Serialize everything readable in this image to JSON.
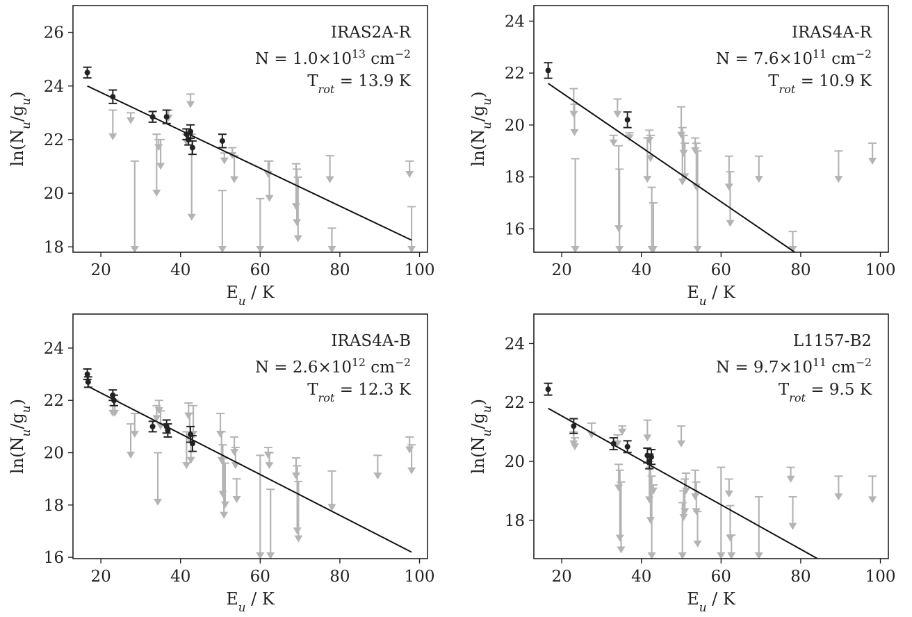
{
  "chart_data": [
    {
      "type": "scatter",
      "title": "",
      "xlabel": "E_u / K",
      "ylabel": "ln(N_u/g_u)",
      "xlim": [
        13,
        102
      ],
      "ylim": [
        17.8,
        27.0
      ],
      "xticks": [
        20,
        40,
        60,
        80,
        100
      ],
      "yticks": [
        18,
        20,
        22,
        24,
        26
      ],
      "grid": false,
      "annotation": {
        "source": "IRAS2A-R",
        "N_pre": "N = 1.0×10",
        "N_exp": "13",
        "N_unit": " cm",
        "N_unit_exp": "−2",
        "T_pre": "T",
        "T_sub": "rot",
        "T_val": " = 13.9 K"
      },
      "fit": {
        "x": [
          16.6,
          98.0
        ],
        "y": [
          24.0,
          18.25
        ]
      },
      "detections": [
        {
          "x": 16.6,
          "y": 24.5,
          "err": 0.2
        },
        {
          "x": 23.0,
          "y": 23.6,
          "err": 0.25
        },
        {
          "x": 33.0,
          "y": 22.85,
          "err": 0.2
        },
        {
          "x": 36.5,
          "y": 22.85,
          "err": 0.25
        },
        {
          "x": 41.5,
          "y": 22.2,
          "err": 0.2
        },
        {
          "x": 42.0,
          "y": 22.0,
          "err": 0.2
        },
        {
          "x": 42.5,
          "y": 22.3,
          "err": 0.25
        },
        {
          "x": 43.0,
          "y": 21.7,
          "err": 0.25
        },
        {
          "x": 50.5,
          "y": 21.95,
          "err": 0.25
        }
      ],
      "upper_limits": [
        {
          "x": 23.0,
          "top": 23.1,
          "bottom": 22.0
        },
        {
          "x": 27.5,
          "top": 23.0,
          "bottom": 22.6
        },
        {
          "x": 28.5,
          "top": 21.2,
          "bottom": 17.8
        },
        {
          "x": 34.0,
          "top": 22.2,
          "bottom": 19.9
        },
        {
          "x": 34.5,
          "top": 22.0,
          "bottom": 21.6
        },
        {
          "x": 35.0,
          "top": 22.0,
          "bottom": 20.9
        },
        {
          "x": 37.0,
          "top": 23.1,
          "bottom": 22.7
        },
        {
          "x": 41.5,
          "top": 22.2,
          "bottom": 21.8
        },
        {
          "x": 42.5,
          "top": 23.7,
          "bottom": 23.2
        },
        {
          "x": 42.8,
          "top": 22.2,
          "bottom": 19.0
        },
        {
          "x": 50.5,
          "top": 20.1,
          "bottom": 17.8
        },
        {
          "x": 51.0,
          "top": 21.5,
          "bottom": 21.1
        },
        {
          "x": 53.0,
          "top": 21.7,
          "bottom": 21.3
        },
        {
          "x": 53.5,
          "top": 21.4,
          "bottom": 20.4
        },
        {
          "x": 60.0,
          "top": 19.8,
          "bottom": 17.8
        },
        {
          "x": 62.0,
          "top": 21.2,
          "bottom": 20.6
        },
        {
          "x": 62.3,
          "top": 21.2,
          "bottom": 19.7
        },
        {
          "x": 69.0,
          "top": 21.1,
          "bottom": 19.4
        },
        {
          "x": 69.2,
          "top": 20.9,
          "bottom": 18.8
        },
        {
          "x": 69.5,
          "top": 20.6,
          "bottom": 18.2
        },
        {
          "x": 77.5,
          "top": 21.4,
          "bottom": 20.4
        },
        {
          "x": 78.0,
          "top": 18.7,
          "bottom": 17.8
        },
        {
          "x": 97.5,
          "top": 21.2,
          "bottom": 20.6
        },
        {
          "x": 98.0,
          "top": 19.5,
          "bottom": 17.8
        }
      ]
    },
    {
      "type": "scatter",
      "title": "",
      "xlabel": "E_u / K",
      "ylabel": "ln(N_u/g_u)",
      "xlim": [
        13,
        102
      ],
      "ylim": [
        15.1,
        24.6
      ],
      "xticks": [
        20,
        40,
        60,
        80,
        100
      ],
      "yticks": [
        16,
        18,
        20,
        22,
        24
      ],
      "grid": false,
      "annotation": {
        "source": "IRAS4A-R",
        "N_pre": "N = 7.6×10",
        "N_exp": "11",
        "N_unit": " cm",
        "N_unit_exp": "−2",
        "T_pre": "T",
        "T_sub": "rot",
        "T_val": " = 10.9 K"
      },
      "fit": {
        "x": [
          16.6,
          78.5
        ],
        "y": [
          21.6,
          15.1
        ]
      },
      "detections": [
        {
          "x": 16.6,
          "y": 22.1,
          "err": 0.3
        },
        {
          "x": 36.5,
          "y": 20.2,
          "err": 0.3
        }
      ],
      "upper_limits": [
        {
          "x": 23.0,
          "top": 21.4,
          "bottom": 20.3
        },
        {
          "x": 23.2,
          "top": 20.8,
          "bottom": 19.6
        },
        {
          "x": 23.4,
          "top": 18.7,
          "bottom": 15.1
        },
        {
          "x": 33.0,
          "top": 19.6,
          "bottom": 19.2
        },
        {
          "x": 34.0,
          "top": 21.0,
          "bottom": 20.3
        },
        {
          "x": 34.3,
          "top": 19.2,
          "bottom": 15.9
        },
        {
          "x": 34.5,
          "top": 18.3,
          "bottom": 15.1
        },
        {
          "x": 37.0,
          "top": 19.7,
          "bottom": 19.4
        },
        {
          "x": 41.5,
          "top": 19.5,
          "bottom": 17.8
        },
        {
          "x": 42.0,
          "top": 19.8,
          "bottom": 19.3
        },
        {
          "x": 42.3,
          "top": 19.6,
          "bottom": 18.6
        },
        {
          "x": 42.6,
          "top": 17.6,
          "bottom": 15.1
        },
        {
          "x": 43.0,
          "top": 17.0,
          "bottom": 15.1
        },
        {
          "x": 50.0,
          "top": 20.7,
          "bottom": 19.5
        },
        {
          "x": 50.3,
          "top": 19.9,
          "bottom": 17.7
        },
        {
          "x": 50.6,
          "top": 19.6,
          "bottom": 18.8
        },
        {
          "x": 50.9,
          "top": 19.3,
          "bottom": 17.9
        },
        {
          "x": 53.5,
          "top": 19.5,
          "bottom": 18.9
        },
        {
          "x": 53.8,
          "top": 19.3,
          "bottom": 17.5
        },
        {
          "x": 54.1,
          "top": 19.0,
          "bottom": 15.1
        },
        {
          "x": 62.0,
          "top": 18.8,
          "bottom": 17.5
        },
        {
          "x": 62.3,
          "top": 18.2,
          "bottom": 16.1
        },
        {
          "x": 69.5,
          "top": 18.8,
          "bottom": 17.8
        },
        {
          "x": 78.0,
          "top": 15.9,
          "bottom": 15.1
        },
        {
          "x": 89.5,
          "top": 19.0,
          "bottom": 17.8
        },
        {
          "x": 98.0,
          "top": 19.3,
          "bottom": 18.5
        }
      ]
    },
    {
      "type": "scatter",
      "title": "",
      "xlabel": "E_u / K",
      "ylabel": "ln(N_u/g_u)",
      "xlim": [
        13,
        102
      ],
      "ylim": [
        15.95,
        25.3
      ],
      "xticks": [
        20,
        40,
        60,
        80,
        100
      ],
      "yticks": [
        16,
        18,
        20,
        22,
        24
      ],
      "grid": false,
      "annotation": {
        "source": "IRAS4A-B",
        "N_pre": "N = 2.6×10",
        "N_exp": "12",
        "N_unit": " cm",
        "N_unit_exp": "−2",
        "T_pre": "T",
        "T_sub": "rot",
        "T_val": " = 12.3 K"
      },
      "fit": {
        "x": [
          16.6,
          98.0
        ],
        "y": [
          22.55,
          16.2
        ]
      },
      "detections": [
        {
          "x": 16.6,
          "y": 23.0,
          "err": 0.2
        },
        {
          "x": 16.8,
          "y": 22.7,
          "err": 0.2
        },
        {
          "x": 23.0,
          "y": 22.2,
          "err": 0.2
        },
        {
          "x": 23.3,
          "y": 22.0,
          "err": 0.2
        },
        {
          "x": 33.0,
          "y": 21.0,
          "err": 0.2
        },
        {
          "x": 36.5,
          "y": 21.0,
          "err": 0.25
        },
        {
          "x": 36.8,
          "y": 20.85,
          "err": 0.25
        },
        {
          "x": 42.5,
          "y": 20.7,
          "err": 0.3
        },
        {
          "x": 43.0,
          "y": 20.35,
          "err": 0.3
        }
      ],
      "upper_limits": [
        {
          "x": 23.0,
          "top": 21.8,
          "bottom": 21.4
        },
        {
          "x": 23.5,
          "top": 22.0,
          "bottom": 21.4
        },
        {
          "x": 27.5,
          "top": 21.1,
          "bottom": 19.8
        },
        {
          "x": 28.5,
          "top": 21.5,
          "bottom": 20.6
        },
        {
          "x": 34.0,
          "top": 21.8,
          "bottom": 21.2
        },
        {
          "x": 34.3,
          "top": 20.0,
          "bottom": 18.0
        },
        {
          "x": 34.6,
          "top": 22.0,
          "bottom": 21.5
        },
        {
          "x": 35.0,
          "top": 21.6,
          "bottom": 20.9
        },
        {
          "x": 41.5,
          "top": 20.8,
          "bottom": 19.4
        },
        {
          "x": 42.0,
          "top": 21.9,
          "bottom": 21.3
        },
        {
          "x": 42.3,
          "top": 21.5,
          "bottom": 20.4
        },
        {
          "x": 42.6,
          "top": 20.6,
          "bottom": 19.6
        },
        {
          "x": 43.2,
          "top": 21.8,
          "bottom": 20.6
        },
        {
          "x": 50.0,
          "top": 21.5,
          "bottom": 20.6
        },
        {
          "x": 50.3,
          "top": 20.8,
          "bottom": 19.6
        },
        {
          "x": 50.6,
          "top": 20.3,
          "bottom": 18.3
        },
        {
          "x": 50.9,
          "top": 19.8,
          "bottom": 17.5
        },
        {
          "x": 51.2,
          "top": 19.6,
          "bottom": 17.9
        },
        {
          "x": 53.5,
          "top": 20.6,
          "bottom": 19.9
        },
        {
          "x": 53.8,
          "top": 20.2,
          "bottom": 19.4
        },
        {
          "x": 54.1,
          "top": 19.0,
          "bottom": 18.1
        },
        {
          "x": 60.0,
          "top": 19.9,
          "bottom": 15.95
        },
        {
          "x": 62.0,
          "top": 20.2,
          "bottom": 19.8
        },
        {
          "x": 62.3,
          "top": 20.0,
          "bottom": 19.4
        },
        {
          "x": 62.6,
          "top": 18.6,
          "bottom": 15.95
        },
        {
          "x": 69.0,
          "top": 19.8,
          "bottom": 19.0
        },
        {
          "x": 69.3,
          "top": 19.5,
          "bottom": 16.9
        },
        {
          "x": 69.6,
          "top": 18.9,
          "bottom": 16.6
        },
        {
          "x": 78.0,
          "top": 19.3,
          "bottom": 17.8
        },
        {
          "x": 89.5,
          "top": 19.9,
          "bottom": 19.0
        },
        {
          "x": 97.5,
          "top": 20.6,
          "bottom": 20.0
        },
        {
          "x": 98.0,
          "top": 20.3,
          "bottom": 19.2
        }
      ]
    },
    {
      "type": "scatter",
      "title": "",
      "xlabel": "E_u / K",
      "ylabel": "ln(N_u/g_u)",
      "xlim": [
        13,
        102
      ],
      "ylim": [
        16.7,
        25.0
      ],
      "xticks": [
        20,
        40,
        60,
        80,
        100
      ],
      "yticks": [
        18,
        20,
        22,
        24
      ],
      "grid": false,
      "annotation": {
        "source": "L1157-B2",
        "N_pre": "N = 9.7×10",
        "N_exp": "11",
        "N_unit": " cm",
        "N_unit_exp": "−2",
        "T_pre": "T",
        "T_sub": "rot",
        "T_val": " = 9.5 K"
      },
      "fit": {
        "x": [
          16.6,
          84.2
        ],
        "y": [
          21.8,
          16.7
        ]
      },
      "detections": [
        {
          "x": 16.6,
          "y": 22.45,
          "err": 0.2
        },
        {
          "x": 23.0,
          "y": 21.2,
          "err": 0.25
        },
        {
          "x": 33.0,
          "y": 20.6,
          "err": 0.2
        },
        {
          "x": 36.5,
          "y": 20.5,
          "err": 0.2
        },
        {
          "x": 41.5,
          "y": 20.2,
          "err": 0.25
        },
        {
          "x": 42.0,
          "y": 20.0,
          "err": 0.25
        },
        {
          "x": 42.5,
          "y": 20.15,
          "err": 0.25
        }
      ],
      "upper_limits": [
        {
          "x": 23.0,
          "top": 21.0,
          "bottom": 20.5
        },
        {
          "x": 23.3,
          "top": 20.8,
          "bottom": 20.4
        },
        {
          "x": 27.5,
          "top": 21.3,
          "bottom": 20.8
        },
        {
          "x": 34.0,
          "top": 20.9,
          "bottom": 20.5
        },
        {
          "x": 34.3,
          "top": 19.9,
          "bottom": 19.0
        },
        {
          "x": 34.6,
          "top": 19.7,
          "bottom": 17.3
        },
        {
          "x": 34.9,
          "top": 19.3,
          "bottom": 16.9
        },
        {
          "x": 35.2,
          "top": 21.2,
          "bottom": 20.9
        },
        {
          "x": 41.5,
          "top": 21.4,
          "bottom": 20.7
        },
        {
          "x": 42.0,
          "top": 20.0,
          "bottom": 18.6
        },
        {
          "x": 42.3,
          "top": 19.8,
          "bottom": 17.9
        },
        {
          "x": 42.6,
          "top": 19.5,
          "bottom": 16.7
        },
        {
          "x": 43.0,
          "top": 19.2,
          "bottom": 18.9
        },
        {
          "x": 50.0,
          "top": 21.2,
          "bottom": 20.5
        },
        {
          "x": 50.3,
          "top": 18.6,
          "bottom": 16.7
        },
        {
          "x": 50.6,
          "top": 19.0,
          "bottom": 18.0
        },
        {
          "x": 50.9,
          "top": 19.4,
          "bottom": 18.2
        },
        {
          "x": 51.2,
          "top": 19.6,
          "bottom": 18.9
        },
        {
          "x": 53.5,
          "top": 19.7,
          "bottom": 18.7
        },
        {
          "x": 53.8,
          "top": 19.3,
          "bottom": 18.2
        },
        {
          "x": 54.1,
          "top": 18.3,
          "bottom": 17.1
        },
        {
          "x": 60.0,
          "top": 19.8,
          "bottom": 16.7
        },
        {
          "x": 62.0,
          "top": 19.4,
          "bottom": 18.8
        },
        {
          "x": 62.3,
          "top": 18.5,
          "bottom": 17.3
        },
        {
          "x": 62.6,
          "top": 17.5,
          "bottom": 16.7
        },
        {
          "x": 69.5,
          "top": 18.8,
          "bottom": 16.7
        },
        {
          "x": 77.5,
          "top": 19.8,
          "bottom": 19.3
        },
        {
          "x": 78.0,
          "top": 18.8,
          "bottom": 17.7
        },
        {
          "x": 89.5,
          "top": 19.5,
          "bottom": 18.7
        },
        {
          "x": 98.0,
          "top": 19.5,
          "bottom": 18.6
        }
      ]
    }
  ]
}
